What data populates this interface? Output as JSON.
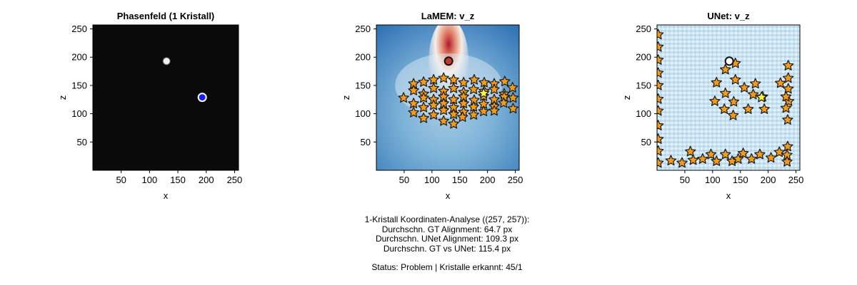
{
  "chart_data": [
    {
      "type": "heatmap",
      "title": "Phasenfeld (1 Kristall)",
      "xlabel": "x",
      "ylabel": "z",
      "xlim": [
        0,
        257
      ],
      "ylim": [
        0,
        257
      ],
      "xticks": [
        50,
        100,
        150,
        200,
        250
      ],
      "yticks": [
        50,
        100,
        150,
        200,
        250
      ],
      "background_color": "#0a0a0a",
      "crystals": [
        {
          "x": 130,
          "z": 193,
          "fill": "#f0f0f0"
        }
      ],
      "markers": [
        {
          "x": 193,
          "z": 129,
          "shape": "circle",
          "fill": "#1a1aff",
          "stroke": "#ffffff"
        }
      ]
    },
    {
      "type": "heatmap",
      "title": "LaMEM: v_z",
      "xlabel": "x",
      "ylabel": "z",
      "xlim": [
        0,
        257
      ],
      "ylim": [
        0,
        257
      ],
      "xticks": [
        50,
        100,
        150,
        200,
        250
      ],
      "yticks": [
        50,
        100,
        150,
        200,
        250
      ],
      "colormap": [
        "#2166ac",
        "#4393c3",
        "#92c5de",
        "#f7f7f7",
        "#d6604d",
        "#b2182b"
      ],
      "markers": [
        {
          "x": 130,
          "z": 193,
          "shape": "circle",
          "fill": "#c0392b",
          "stroke": "#111111"
        }
      ],
      "stars": [
        [
          67,
          153
        ],
        [
          85,
          156
        ],
        [
          103,
          160
        ],
        [
          121,
          163
        ],
        [
          139,
          160
        ],
        [
          157,
          155
        ],
        [
          176,
          160
        ],
        [
          194,
          155
        ],
        [
          212,
          153
        ],
        [
          231,
          157
        ],
        [
          245,
          146
        ],
        [
          49,
          128
        ],
        [
          67,
          141
        ],
        [
          85,
          135
        ],
        [
          103,
          145
        ],
        [
          121,
          140
        ],
        [
          139,
          145
        ],
        [
          157,
          138
        ],
        [
          175,
          143
        ],
        [
          194,
          140
        ],
        [
          212,
          143
        ],
        [
          230,
          135
        ],
        [
          67,
          118
        ],
        [
          85,
          128
        ],
        [
          103,
          125
        ],
        [
          121,
          130
        ],
        [
          139,
          125
        ],
        [
          157,
          130
        ],
        [
          176,
          124
        ],
        [
          193,
          131
        ],
        [
          212,
          125
        ],
        [
          230,
          130
        ],
        [
          246,
          128
        ],
        [
          67,
          102
        ],
        [
          85,
          111
        ],
        [
          103,
          115
        ],
        [
          121,
          118
        ],
        [
          139,
          111
        ],
        [
          157,
          118
        ],
        [
          175,
          112
        ],
        [
          193,
          117
        ],
        [
          212,
          113
        ],
        [
          229,
          119
        ],
        [
          246,
          109
        ],
        [
          85,
          92
        ],
        [
          103,
          98
        ],
        [
          121,
          106
        ],
        [
          139,
          99
        ],
        [
          157,
          103
        ],
        [
          175,
          98
        ],
        [
          193,
          104
        ],
        [
          212,
          105
        ],
        [
          121,
          87
        ],
        [
          139,
          82
        ],
        [
          155,
          94
        ]
      ],
      "highlight_star": [
        193,
        136
      ]
    },
    {
      "type": "heatmap",
      "title": "UNet: v_z",
      "xlabel": "x",
      "ylabel": "z",
      "xlim": [
        0,
        257
      ],
      "ylim": [
        0,
        257
      ],
      "xticks": [
        50,
        100,
        150,
        200,
        250
      ],
      "yticks": [
        50,
        100,
        150,
        200,
        250
      ],
      "colormap": [
        "#bcdcee",
        "#d6e9f5",
        "#e9f3fa"
      ],
      "markers": [
        {
          "x": 130,
          "z": 193,
          "shape": "circle",
          "fill": "#ffffff",
          "stroke": "#111111"
        }
      ],
      "stars": [
        [
          2,
          240
        ],
        [
          2,
          218
        ],
        [
          2,
          195
        ],
        [
          2,
          172
        ],
        [
          2,
          150
        ],
        [
          2,
          126
        ],
        [
          2,
          105
        ],
        [
          2,
          79
        ],
        [
          2,
          55
        ],
        [
          2,
          34
        ],
        [
          2,
          13
        ],
        [
          123,
          178
        ],
        [
          141,
          189
        ],
        [
          107,
          155
        ],
        [
          123,
          136
        ],
        [
          141,
          160
        ],
        [
          157,
          146
        ],
        [
          173,
          134
        ],
        [
          177,
          153
        ],
        [
          104,
          122
        ],
        [
          121,
          108
        ],
        [
          138,
          121
        ],
        [
          137,
          97
        ],
        [
          164,
          108
        ],
        [
          193,
          108
        ],
        [
          190,
          130
        ],
        [
          222,
          154
        ],
        [
          236,
          185
        ],
        [
          236,
          163
        ],
        [
          236,
          144
        ],
        [
          237,
          122
        ],
        [
          232,
          130
        ],
        [
          232,
          110
        ],
        [
          235,
          89
        ],
        [
          235,
          42
        ],
        [
          234,
          27
        ],
        [
          234,
          15
        ],
        [
          25,
          17
        ],
        [
          45,
          13
        ],
        [
          60,
          33
        ],
        [
          65,
          18
        ],
        [
          82,
          20
        ],
        [
          97,
          28
        ],
        [
          107,
          16
        ],
        [
          123,
          28
        ],
        [
          135,
          16
        ],
        [
          146,
          20
        ],
        [
          155,
          30
        ],
        [
          170,
          20
        ],
        [
          185,
          28
        ],
        [
          205,
          22
        ],
        [
          220,
          32
        ],
        [
          188,
          129
        ]
      ],
      "highlight_star": [
        188,
        129
      ]
    }
  ],
  "analysis": {
    "heading": "1-Kristall Koordinaten-Analyse ((257, 257)):",
    "gt_alignment": "Durchschn. GT Alignment: 64.7 px",
    "unet_alignment": "Durchschn. UNet Alignment: 109.3 px",
    "gt_vs_unet": "Durchschn. GT vs UNet: 115.4 px",
    "status": "Status: Problem | Kristalle erkannt: 45/1"
  }
}
